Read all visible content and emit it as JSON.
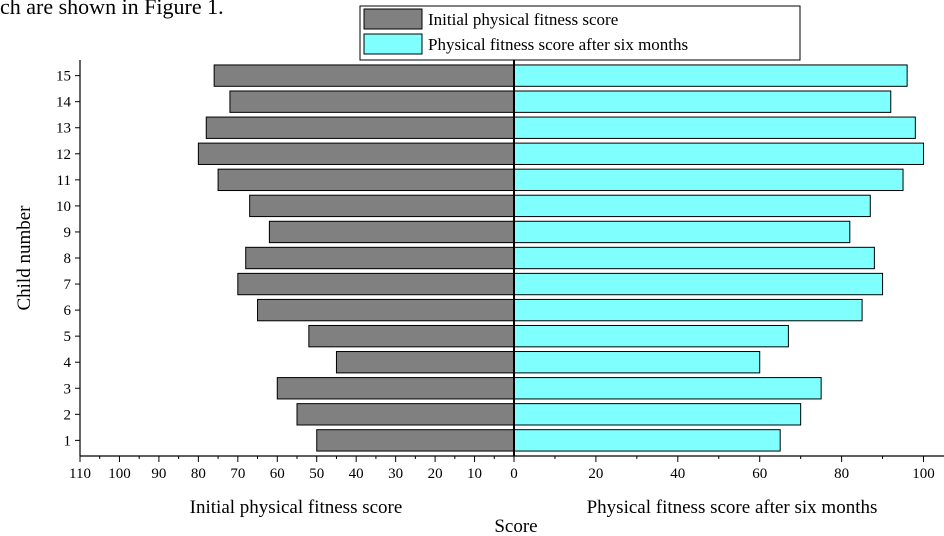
{
  "caption_fragment": "ch are shown in Figure 1.",
  "chart_data": {
    "type": "bar",
    "orientation": "horizontal-back-to-back",
    "categories": [
      "1",
      "2",
      "3",
      "4",
      "5",
      "6",
      "7",
      "8",
      "9",
      "10",
      "11",
      "12",
      "13",
      "14",
      "15"
    ],
    "series": [
      {
        "name": "Initial physical fitness score",
        "color": "#808080",
        "side": "left",
        "values": [
          50,
          55,
          60,
          45,
          52,
          65,
          70,
          68,
          62,
          67,
          75,
          80,
          78,
          72,
          76
        ]
      },
      {
        "name": "Physical fitness score after six months",
        "color": "#80ffff",
        "side": "right",
        "values": [
          65,
          70,
          75,
          60,
          67,
          85,
          90,
          88,
          82,
          87,
          95,
          100,
          98,
          92,
          96
        ]
      }
    ],
    "left_axis": {
      "label": "Initial physical fitness score",
      "range": [
        110,
        0
      ],
      "ticks": [
        110,
        100,
        90,
        80,
        70,
        60,
        50,
        40,
        30,
        20,
        10,
        0
      ]
    },
    "right_axis": {
      "label": "Physical fitness score after six months",
      "range": [
        0,
        105
      ],
      "ticks": [
        0,
        20,
        40,
        60,
        80,
        100
      ]
    },
    "xlabel": "Score",
    "ylabel": "Child number",
    "legend_position": "top-center",
    "grid": false
  }
}
